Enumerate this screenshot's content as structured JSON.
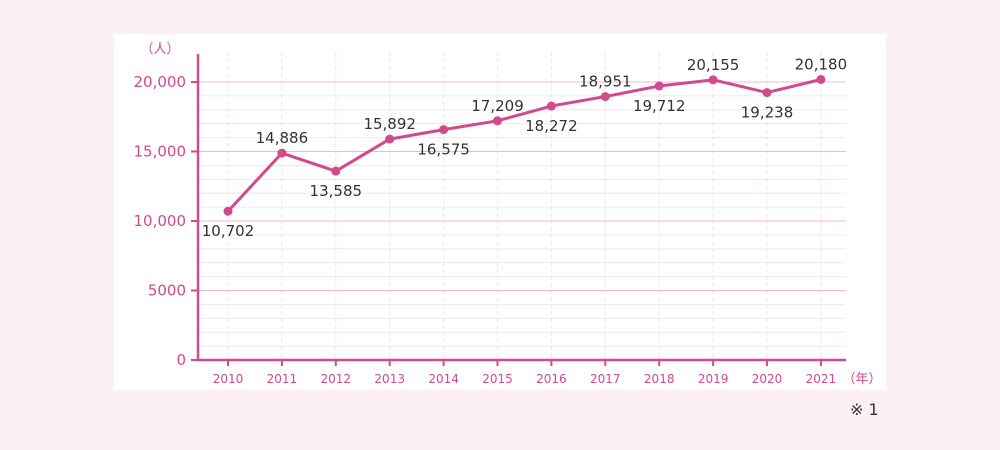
{
  "note": "※ 1",
  "chart_data": {
    "type": "line",
    "title": "",
    "ylabel_unit": "（人）",
    "xlabel_unit": "（年）",
    "x": [
      "2010",
      "2011",
      "2012",
      "2013",
      "2014",
      "2015",
      "2016",
      "2017",
      "2018",
      "2019",
      "2020",
      "2021"
    ],
    "series": [
      {
        "name": "",
        "values": [
          10702,
          14886,
          13585,
          15892,
          16575,
          17209,
          18272,
          18951,
          19712,
          20155,
          19238,
          20180
        ],
        "labels": [
          "10,702",
          "14,886",
          "13,585",
          "15,892",
          "16,575",
          "17,209",
          "18,272",
          "18,951",
          "19,712",
          "20,155",
          "19,238",
          "20,180"
        ],
        "label_positions": [
          "below",
          "above",
          "below",
          "above",
          "below",
          "above",
          "below",
          "above",
          "below",
          "above",
          "below",
          "above"
        ]
      }
    ],
    "yticks": [
      0,
      5000,
      10000,
      15000,
      20000
    ],
    "ytick_labels": [
      "0",
      "5000",
      "10,000",
      "15,000",
      "20,000"
    ],
    "ylim": [
      0,
      20000
    ],
    "grid": true,
    "colors": {
      "line": "#d04a8c",
      "axis": "#d04a8c",
      "major_grid": "#f2b8cf",
      "minor_grid": "#f1dfe7",
      "text": "#333333",
      "tick_text": "#d04a8c",
      "background": "#fdf0f4",
      "panel": "#ffffff"
    }
  }
}
